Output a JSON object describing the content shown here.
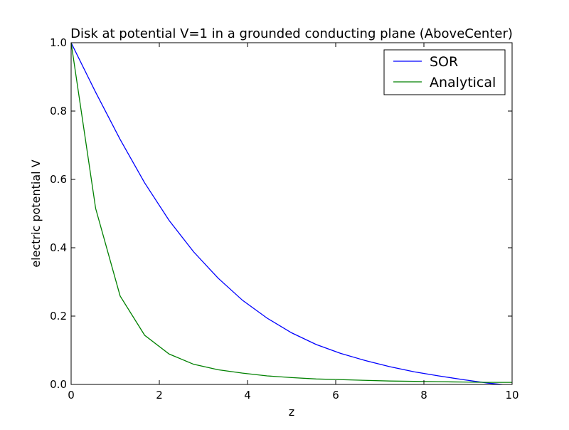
{
  "chart_data": {
    "type": "line",
    "title": "Disk at potential V=1 in a grounded conducting plane (AboveCenter)",
    "xlabel": "z",
    "ylabel": "electric potential V",
    "xlim": [
      0,
      10
    ],
    "ylim": [
      0.0,
      1.0
    ],
    "xticks": [
      0,
      2,
      4,
      6,
      8,
      10
    ],
    "xtick_labels": [
      "0",
      "2",
      "4",
      "6",
      "8",
      "10"
    ],
    "yticks": [
      0.0,
      0.2,
      0.4,
      0.6,
      0.8,
      1.0
    ],
    "ytick_labels": [
      "0.0",
      "0.2",
      "0.4",
      "0.6",
      "0.8",
      "1.0"
    ],
    "grid": false,
    "legend_position": "top-right",
    "series": [
      {
        "name": "SOR",
        "color": "#0000ff",
        "x": [
          0,
          0.556,
          1.111,
          1.667,
          2.222,
          2.778,
          3.333,
          3.889,
          4.444,
          5.0,
          5.556,
          6.111,
          6.667,
          7.222,
          7.778,
          8.333,
          8.889,
          9.444,
          10.0
        ],
        "y": [
          1.0,
          0.855,
          0.717,
          0.59,
          0.48,
          0.388,
          0.311,
          0.246,
          0.194,
          0.151,
          0.117,
          0.091,
          0.07,
          0.052,
          0.037,
          0.025,
          0.014,
          0.004,
          -0.003
        ]
      },
      {
        "name": "Analytical",
        "color": "#008000",
        "x": [
          0,
          0.556,
          1.111,
          1.667,
          2.222,
          2.778,
          3.333,
          3.889,
          4.444,
          5.0,
          5.556,
          6.111,
          6.667,
          7.222,
          7.778,
          8.333,
          8.889,
          9.444,
          10.0
        ],
        "y": [
          1.0,
          0.515,
          0.259,
          0.144,
          0.089,
          0.059,
          0.043,
          0.033,
          0.025,
          0.02,
          0.016,
          0.014,
          0.012,
          0.01,
          0.009,
          0.008,
          0.007,
          0.006,
          0.006
        ]
      }
    ]
  }
}
